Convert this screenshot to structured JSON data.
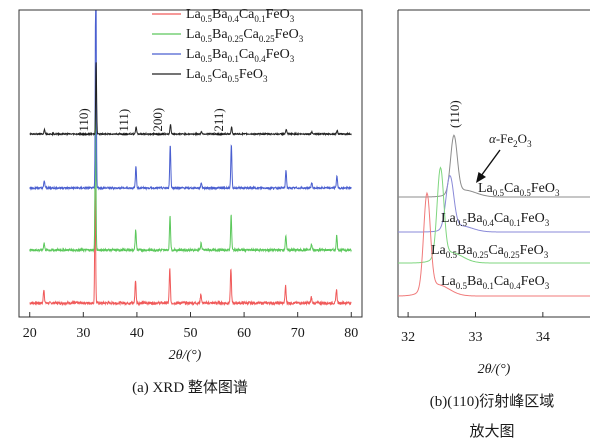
{
  "chart_data": [
    {
      "type": "line",
      "panel": "a",
      "caption": "(a) XRD 整体图谱",
      "xlabel": "2θ/(°)",
      "x_ticks": [
        20,
        30,
        40,
        50,
        60,
        70,
        80
      ],
      "xlim": [
        18,
        82
      ],
      "y_axis": "arbitrary intensity, patterns stacked with vertical offset; no y tick labels",
      "grid": false,
      "legend_position": "top-right",
      "peak_labels": [
        {
          "text": "(110)",
          "x": 32.4
        },
        {
          "text": "(111)",
          "x": 39.8
        },
        {
          "text": "(200)",
          "x": 46.2
        },
        {
          "text": "(211)",
          "x": 57.6
        }
      ],
      "peaks_2theta": [
        22.7,
        32.3,
        39.8,
        46.2,
        52.0,
        57.6,
        67.8,
        72.6,
        77.3
      ],
      "series": [
        {
          "name": "La0.5Ba0.4Ca0.1FeO3",
          "color": "#f05a5a",
          "offset": 0,
          "peak_shift": -0.3,
          "peak_intensity": [
            0.12,
            1.0,
            0.2,
            0.3,
            0.08,
            0.3,
            0.15,
            0.05,
            0.12
          ],
          "noise": 0.012
        },
        {
          "name": "La0.5Ba0.25Ca0.25FeO3",
          "color": "#5cc85c",
          "offset": 0.19,
          "peak_shift": -0.1,
          "peak_intensity": [
            0.05,
            1.0,
            0.14,
            0.24,
            0.05,
            0.24,
            0.1,
            0.04,
            0.1
          ],
          "noise": 0.008
        },
        {
          "name": "La0.5Ba0.1Ca0.4FeO3",
          "color": "#4a5fd0",
          "offset": 0.36,
          "peak_shift": 0.1,
          "peak_intensity": [
            0.04,
            1.4,
            0.12,
            0.24,
            0.03,
            0.24,
            0.1,
            0.03,
            0.07
          ],
          "noise": 0.005
        },
        {
          "name": "La0.5Ca0.5FeO3",
          "color": "#222222",
          "offset": 0.56,
          "peak_shift": 0.3,
          "peak_intensity": [
            0.04,
            0.6,
            0.06,
            0.08,
            0.02,
            0.06,
            0.04,
            0.02,
            0.03
          ],
          "noise": 0.005
        }
      ],
      "legend": [
        {
          "base": "La",
          "sub": "0.5",
          "parts": [
            [
              "Ba",
              "0.4"
            ],
            [
              "Ca",
              "0.1"
            ],
            [
              "FeO",
              "3"
            ]
          ]
        },
        {
          "base": "La",
          "sub": "0.5",
          "parts": [
            [
              "Ba",
              "0.25"
            ],
            [
              "Ca",
              "0.25"
            ],
            [
              "FeO",
              "3"
            ]
          ]
        },
        {
          "base": "La",
          "sub": "0.5",
          "parts": [
            [
              "Ba",
              "0.1"
            ],
            [
              "Ca",
              "0.4"
            ],
            [
              "FeO",
              "3"
            ]
          ]
        },
        {
          "base": "La",
          "sub": "0.5",
          "parts": [
            [
              "Ca",
              "0.5"
            ],
            [
              "FeO",
              "3"
            ]
          ]
        }
      ]
    },
    {
      "type": "line",
      "panel": "b",
      "caption_line1": "(b)(110)衍射峰区域",
      "caption_line2": "放大图",
      "xlabel": "2θ/(°)",
      "x_ticks": [
        32,
        33,
        34
      ],
      "xlim": [
        31.85,
        34.7
      ],
      "grid": false,
      "peak_label": "(110)",
      "annotation": "α-Fe2O3",
      "series": [
        {
          "name": "La0.5Ca0.5FeO3",
          "color": "#8c8c8c",
          "peak_x": 32.68,
          "peak_height": 1.0,
          "width": 0.07,
          "baseline": 0.72
        },
        {
          "name": "La0.5Ba0.4Ca0.1FeO3",
          "color": "#8a8ad8",
          "peak_x": 32.62,
          "peak_height": 0.85,
          "width": 0.08,
          "baseline": 0.52
        },
        {
          "name": "La0.5Ba0.25Ca0.25FeO3",
          "color": "#7fd67f",
          "peak_x": 32.48,
          "peak_height": 0.72,
          "width": 0.07,
          "baseline": 0.36
        },
        {
          "name": "La0.5Ba0.1Ca0.4FeO3",
          "color": "#f07a7a",
          "peak_x": 32.28,
          "peak_height": 0.62,
          "width": 0.07,
          "baseline": 0.17
        }
      ],
      "labels": [
        {
          "base": "La",
          "sub": "0.5",
          "parts": [
            [
              "Ca",
              "0.5"
            ],
            [
              "FeO",
              "3"
            ]
          ]
        },
        {
          "base": "La",
          "sub": "0.5",
          "parts": [
            [
              "Ba",
              "0.4"
            ],
            [
              "Ca",
              "0.1"
            ],
            [
              "FeO",
              "3"
            ]
          ]
        },
        {
          "base": "La",
          "sub": "0.5",
          "parts": [
            [
              "Ba",
              "0.25"
            ],
            [
              "Ca",
              "0.25"
            ],
            [
              "FeO",
              "3"
            ]
          ]
        },
        {
          "base": "La",
          "sub": "0.5",
          "parts": [
            [
              "Ba",
              "0.1"
            ],
            [
              "Ca",
              "0.4"
            ],
            [
              "FeO",
              "3"
            ]
          ]
        }
      ]
    }
  ]
}
